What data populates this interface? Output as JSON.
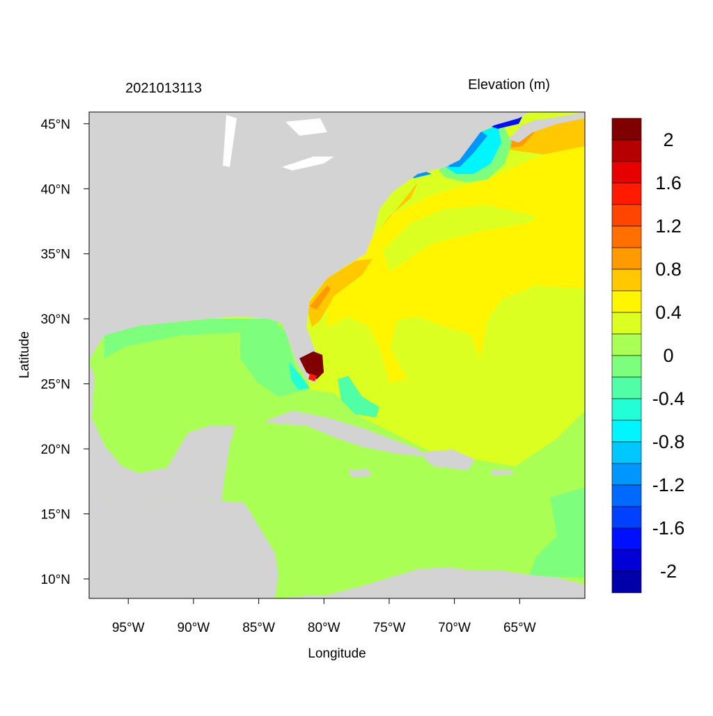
{
  "chart_data": {
    "type": "heatmap",
    "title_left": "2021013113",
    "title_right": "Elevation (m)",
    "xlabel": "Longitude",
    "ylabel": "Latitude",
    "xlim": [
      -98,
      -60
    ],
    "ylim": [
      8.5,
      45.9
    ],
    "x_ticks": [
      {
        "value": -95,
        "label": "95°W"
      },
      {
        "value": -90,
        "label": "90°W"
      },
      {
        "value": -85,
        "label": "85°W"
      },
      {
        "value": -80,
        "label": "80°W"
      },
      {
        "value": -75,
        "label": "75°W"
      },
      {
        "value": -70,
        "label": "70°W"
      },
      {
        "value": -65,
        "label": "65°W"
      }
    ],
    "y_ticks": [
      {
        "value": 45,
        "label": "45°N"
      },
      {
        "value": 40,
        "label": "40°N"
      },
      {
        "value": 35,
        "label": "35°N"
      },
      {
        "value": 30,
        "label": "30°N"
      },
      {
        "value": 25,
        "label": "25°N"
      },
      {
        "value": 20,
        "label": "20°N"
      },
      {
        "value": 15,
        "label": "15°N"
      },
      {
        "value": 10,
        "label": "10°N"
      }
    ],
    "colorbar": {
      "levels": [
        2.0,
        1.8,
        1.6,
        1.4,
        1.2,
        1.0,
        0.8,
        0.6,
        0.4,
        0.2,
        0.0,
        -0.2,
        -0.4,
        -0.6,
        -0.8,
        -1.0,
        -1.2,
        -1.4,
        -1.6,
        -1.8,
        -2.0
      ],
      "labels": [
        {
          "value": 2,
          "label": "2"
        },
        {
          "value": 1.6,
          "label": "1.6"
        },
        {
          "value": 1.2,
          "label": "1.2"
        },
        {
          "value": 0.8,
          "label": "0.8"
        },
        {
          "value": 0.4,
          "label": "0.4"
        },
        {
          "value": 0,
          "label": "0"
        },
        {
          "value": -0.4,
          "label": "-0.4"
        },
        {
          "value": -0.8,
          "label": "-0.8"
        },
        {
          "value": -1.2,
          "label": "-1.2"
        },
        {
          "value": -1.6,
          "label": "-1.6"
        },
        {
          "value": -2,
          "label": "-2"
        }
      ],
      "colors": [
        "#800000",
        "#B40000",
        "#E60000",
        "#FF1A00",
        "#FF4500",
        "#FF7000",
        "#FF9A00",
        "#FFC800",
        "#FFF500",
        "#DCFF22",
        "#AAFF55",
        "#7DFF7D",
        "#50FFA5",
        "#22FFD7",
        "#00F5FF",
        "#00C8FF",
        "#0096FF",
        "#006AFF",
        "#0040FF",
        "#0010FF",
        "#0000D7",
        "#0000AA"
      ]
    },
    "land_color": "#D3D3D3"
  }
}
